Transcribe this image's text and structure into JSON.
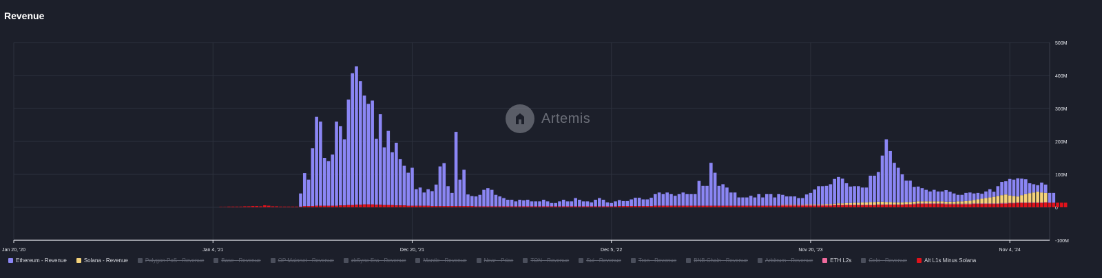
{
  "title": "Revenue",
  "watermark": "Artemis",
  "colors": {
    "ethereum": "#8b86f4",
    "solana": "#f4d27a",
    "eth_l2s": "#f06b9d",
    "alt_l1": "#e0121b",
    "disabled": "#4b4f5c",
    "grid": "#2d313d",
    "axis": "#e6e8ee"
  },
  "legend": [
    {
      "label": "Ethereum - Revenue",
      "color": "#8b86f4",
      "active": true
    },
    {
      "label": "Solana - Revenue",
      "color": "#f4d27a",
      "active": true
    },
    {
      "label": "Polygon PoS - Revenue",
      "color": "#4b4f5c",
      "active": false
    },
    {
      "label": "Base - Revenue",
      "color": "#4b4f5c",
      "active": false
    },
    {
      "label": "OP Mainnet - Revenue",
      "color": "#4b4f5c",
      "active": false
    },
    {
      "label": "zkSync Era - Revenue",
      "color": "#4b4f5c",
      "active": false
    },
    {
      "label": "Mantle - Revenue",
      "color": "#4b4f5c",
      "active": false
    },
    {
      "label": "Near - Price",
      "color": "#4b4f5c",
      "active": false
    },
    {
      "label": "TON - Revenue",
      "color": "#4b4f5c",
      "active": false
    },
    {
      "label": "Sui - Revenue",
      "color": "#4b4f5c",
      "active": false
    },
    {
      "label": "Tron - Revenue",
      "color": "#4b4f5c",
      "active": false
    },
    {
      "label": "BNB Chain - Revenue",
      "color": "#4b4f5c",
      "active": false
    },
    {
      "label": "Arbitrum - Revenue",
      "color": "#4b4f5c",
      "active": false
    },
    {
      "label": "ETH L2s",
      "color": "#f06b9d",
      "active": true
    },
    {
      "label": "Celo - Revenue",
      "color": "#4b4f5c",
      "active": false
    },
    {
      "label": "Alt L1s Minus Solana",
      "color": "#e0121b",
      "active": true
    }
  ],
  "chart_data": {
    "type": "bar",
    "stacked": true,
    "title": "Revenue",
    "ylim": [
      -100000000,
      500000000
    ],
    "y_ticks": [
      {
        "value": 500000000,
        "label": "500M"
      },
      {
        "value": 400000000,
        "label": "400M"
      },
      {
        "value": 300000000,
        "label": "300M"
      },
      {
        "value": 200000000,
        "label": "200M"
      },
      {
        "value": 100000000,
        "label": "100M"
      },
      {
        "value": 0,
        "label": "0"
      },
      {
        "value": -100000000,
        "label": "-100M"
      }
    ],
    "x_range": [
      "2020-01-20",
      "2025-01-13"
    ],
    "x_ticks": [
      {
        "date": "2020-01-20",
        "label": "Jan 20, '20"
      },
      {
        "date": "2021-01-04",
        "label": "Jan 4, '21"
      },
      {
        "date": "2021-12-20",
        "label": "Dec 20, '21"
      },
      {
        "date": "2022-12-05",
        "label": "Dec 5, '22"
      },
      {
        "date": "2023-11-20",
        "label": "Nov 20, '23"
      },
      {
        "date": "2024-11-04",
        "label": "Nov 4, '24"
      }
    ],
    "grid": true,
    "legend_position": "bottom",
    "interval": "weekly",
    "series": [
      {
        "name": "Alt L1s Minus Solana",
        "start": "2021-01-18",
        "values": [
          1,
          1,
          2,
          2,
          2,
          2,
          3,
          3,
          4,
          4,
          3,
          6,
          5,
          3,
          3,
          2,
          2,
          2,
          2,
          2,
          2,
          4,
          4,
          4,
          5,
          5,
          5,
          5,
          5,
          5,
          6,
          6,
          7,
          7,
          8,
          8,
          9,
          9,
          9,
          8,
          8,
          7,
          7,
          7,
          6,
          6,
          6,
          5,
          5,
          5,
          5,
          5,
          5,
          4,
          4,
          4,
          4,
          4,
          4,
          4,
          4,
          4,
          4,
          4,
          3,
          3,
          3,
          3,
          3,
          3,
          3,
          3,
          3,
          3,
          3,
          3,
          3,
          3,
          3,
          3,
          3,
          3,
          3,
          3,
          3,
          3,
          3,
          3,
          3,
          3,
          3,
          3,
          3,
          3,
          3,
          3,
          3,
          3,
          3,
          3,
          4,
          4,
          4,
          4,
          4,
          4,
          4,
          4,
          4,
          5,
          5,
          5,
          5,
          5,
          5,
          5,
          5,
          5,
          5,
          5,
          5,
          5,
          5,
          5,
          5,
          5,
          5,
          5,
          5,
          5,
          5,
          5,
          5,
          5,
          5,
          5,
          5,
          5,
          5,
          5,
          5,
          5,
          5,
          5,
          5,
          5,
          5,
          5,
          5,
          5,
          5,
          5,
          5,
          5,
          6,
          6,
          6,
          6,
          6,
          6,
          6,
          6,
          6,
          6,
          6,
          7,
          7,
          7,
          7,
          7,
          7,
          7,
          8,
          8,
          9,
          10,
          10,
          10,
          10,
          10,
          10,
          10,
          9,
          9,
          9,
          9,
          9,
          9,
          9,
          10,
          10,
          10,
          10,
          10,
          10,
          10,
          11,
          11,
          12,
          12,
          13,
          13,
          13,
          13,
          13,
          13,
          13,
          14,
          14,
          14,
          14,
          14,
          14
        ]
      },
      {
        "name": "Ethereum - Revenue",
        "start": "2021-06-07",
        "values": [
          40,
          100,
          80,
          175,
          270,
          255,
          145,
          135,
          155,
          255,
          240,
          200,
          320,
          400,
          420,
          375,
          330,
          305,
          315,
          200,
          275,
          175,
          225,
          160,
          190,
          140,
          120,
          100,
          115,
          50,
          55,
          40,
          50,
          45,
          65,
          120,
          130,
          60,
          40,
          225,
          80,
          110,
          35,
          30,
          30,
          35,
          50,
          55,
          50,
          35,
          30,
          25,
          20,
          20,
          15,
          20,
          18,
          20,
          15,
          15,
          15,
          20,
          15,
          10,
          10,
          15,
          20,
          15,
          15,
          25,
          20,
          15,
          15,
          12,
          20,
          25,
          20,
          12,
          10,
          15,
          18,
          15,
          15,
          20,
          25,
          25,
          20,
          20,
          25,
          35,
          40,
          35,
          40,
          35,
          30,
          35,
          40,
          35,
          35,
          35,
          75,
          60,
          60,
          130,
          100,
          60,
          65,
          55,
          40,
          40,
          25,
          25,
          25,
          30,
          25,
          35,
          25,
          35,
          35,
          25,
          35,
          30,
          25,
          25,
          25,
          20,
          20,
          30,
          35,
          45,
          55,
          55,
          55,
          60,
          75,
          80,
          75,
          60,
          50,
          50,
          50,
          45,
          45,
          80,
          80,
          90,
          140,
          190,
          155,
          120,
          105,
          85,
          65,
          65,
          45,
          45,
          40,
          35,
          30,
          35,
          30,
          30,
          35,
          30,
          25,
          20,
          20,
          25,
          25,
          20,
          20,
          15,
          20,
          25,
          15,
          30,
          40,
          40,
          50,
          50,
          55,
          50,
          45,
          30,
          25,
          20,
          30,
          25,
          30,
          30
        ]
      },
      {
        "name": "Solana - Revenue",
        "start": "2023-10-02",
        "values": [
          1,
          1,
          1,
          1,
          1,
          1,
          2,
          2,
          2,
          2,
          2,
          3,
          3,
          3,
          4,
          4,
          5,
          5,
          6,
          6,
          7,
          7,
          8,
          8,
          8,
          8,
          7,
          7,
          6,
          6,
          6,
          6,
          6,
          6,
          6,
          6,
          6,
          6,
          6,
          6,
          6,
          6,
          6,
          6,
          7,
          7,
          8,
          9,
          10,
          12,
          14,
          16,
          18,
          20,
          22,
          24,
          26,
          22,
          20,
          18,
          22,
          25,
          28,
          30,
          32,
          30,
          28
        ]
      },
      {
        "name": "ETH L2s",
        "start": "2023-10-02",
        "values": [
          2,
          2,
          2,
          2,
          2,
          2,
          2,
          2,
          2,
          2,
          2,
          2,
          2,
          2,
          2,
          2,
          2,
          2,
          2,
          2,
          2,
          2,
          2,
          2,
          2,
          2,
          2,
          2,
          2,
          2,
          2,
          2,
          2,
          2,
          2,
          2,
          2,
          2,
          2,
          2,
          2,
          2,
          2,
          2,
          2,
          2,
          2,
          2,
          2,
          2,
          2,
          2,
          2,
          2,
          2,
          2,
          2,
          2,
          2,
          2,
          2,
          2,
          2,
          2,
          2,
          2,
          2
        ]
      }
    ],
    "value_unit": "M"
  }
}
